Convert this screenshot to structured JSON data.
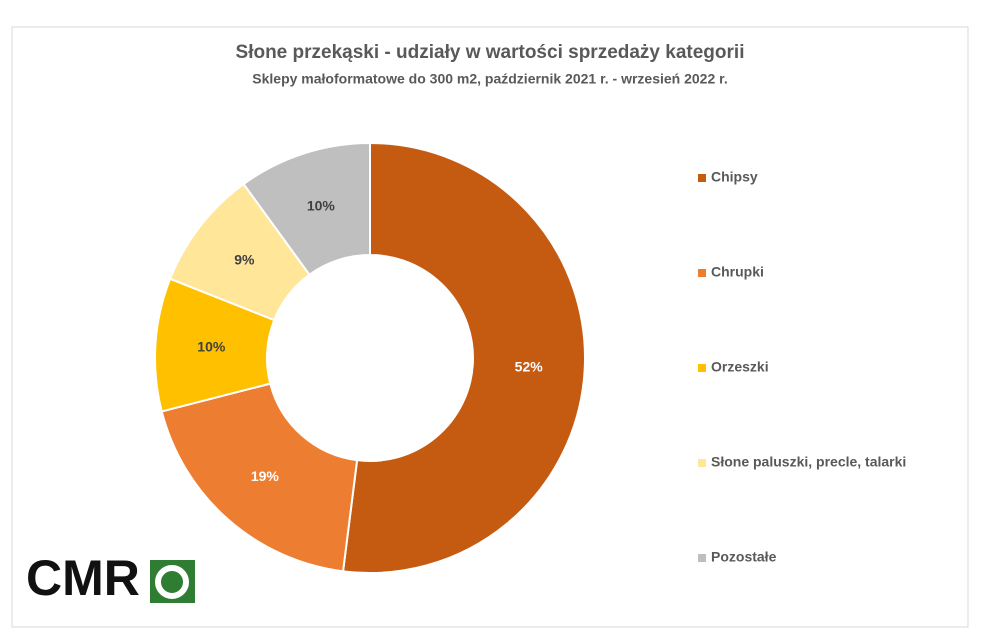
{
  "chart_data": {
    "type": "donut",
    "title": "Słone przekąski - udziały w wartości sprzedaży kategorii",
    "subtitle": "Sklepy małoformatowe do 300 m2, październik 2021 r. - wrzesień 2022 r.",
    "categories": [
      "Chipsy",
      "Chrupki",
      "Orzeszki",
      "Słone paluszki, precle, talarki",
      "Pozostałe"
    ],
    "values": [
      52,
      19,
      10,
      9,
      10
    ],
    "value_labels": [
      "52%",
      "19%",
      "10%",
      "9%",
      "10%"
    ],
    "colors": [
      "#c55a11",
      "#ed7d31",
      "#ffc000",
      "#ffe699",
      "#bfbfbf"
    ],
    "legend": "right"
  },
  "logo": "CMR"
}
